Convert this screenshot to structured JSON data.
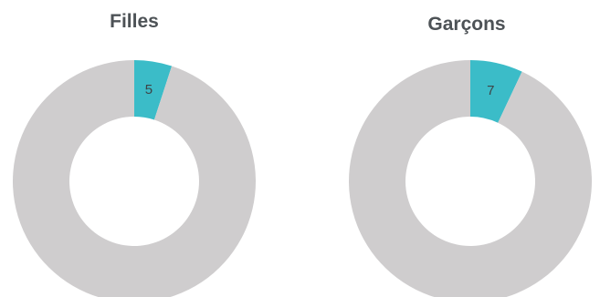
{
  "chart_data": [
    {
      "type": "pie",
      "title": "Filles",
      "categories": [
        "",
        ""
      ],
      "values": [
        5,
        95
      ],
      "labels": [
        "5",
        ""
      ],
      "colors": [
        "#3bbcc8",
        "#cfcdce"
      ]
    },
    {
      "type": "pie",
      "title": "Garçons",
      "categories": [
        "",
        ""
      ],
      "values": [
        7,
        93
      ],
      "labels": [
        "7",
        ""
      ],
      "colors": [
        "#3bbcc8",
        "#cfcdce"
      ]
    }
  ]
}
